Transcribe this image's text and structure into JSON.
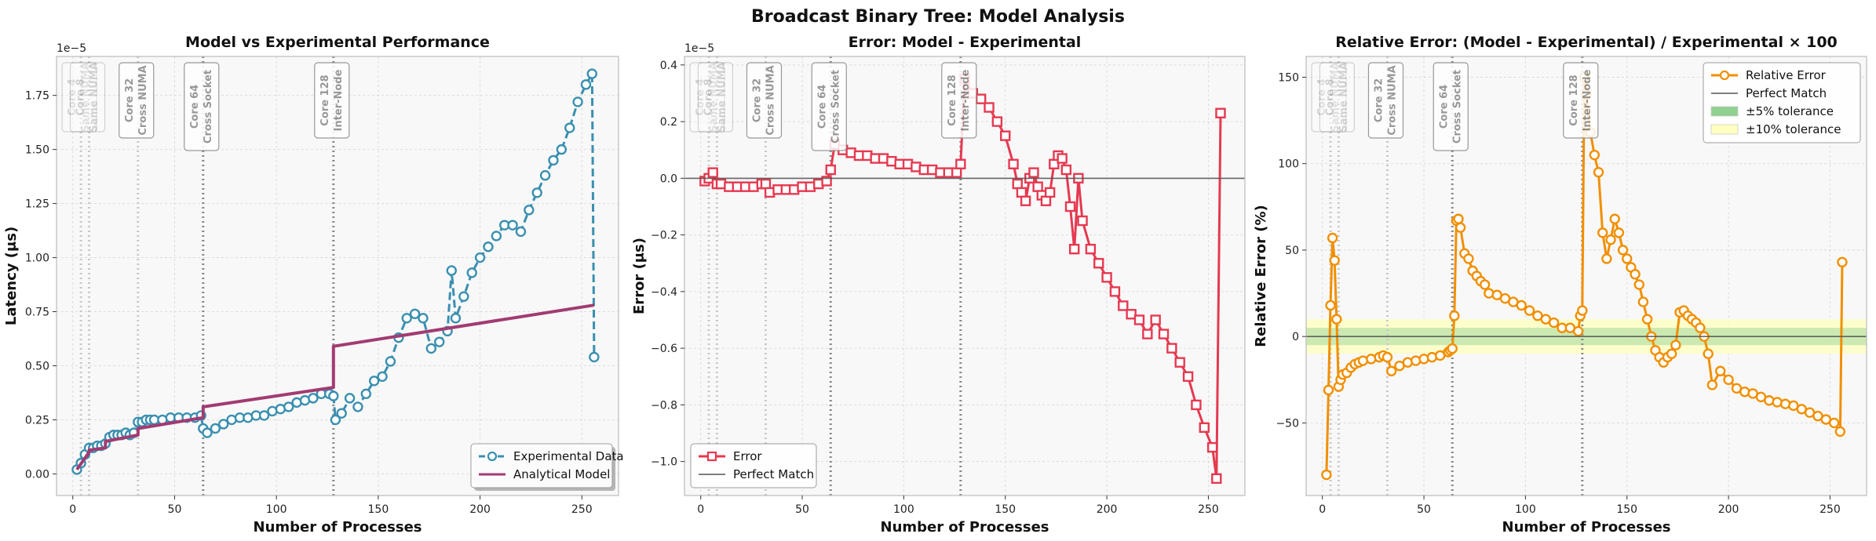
{
  "figure": {
    "title": "Broadcast Binary Tree: Model Analysis"
  },
  "colors": {
    "experimental": "#3a8fb0",
    "model": "#a23b72",
    "error": "#e63950",
    "relerr": "#f18f01",
    "reference": "#555555",
    "tol5": "#90d090",
    "tol10": "#ffffc0",
    "panel_bg": "#f8f8f8"
  },
  "boundaries": [
    {
      "x": 4,
      "line1": "Core 4",
      "line2": "Same NUMA"
    },
    {
      "x": 8,
      "line1": "Core 8",
      "line2": "Same NUMA"
    },
    {
      "x": 32,
      "line1": "Core 32",
      "line2": "Cross NUMA"
    },
    {
      "x": 64,
      "line1": "Core 64",
      "line2": "Cross Socket"
    },
    {
      "x": 128,
      "line1": "Core 128",
      "line2": "Inter-Node"
    }
  ],
  "chart_data": [
    {
      "type": "line",
      "title": "Model vs Experimental Performance",
      "xlabel": "Number of Processes",
      "ylabel": "Latency (μs)",
      "y_offset_label": "1e−5",
      "xlim": [
        -8,
        268
      ],
      "ylim": [
        -0.1,
        1.93
      ],
      "xticks": [
        0,
        50,
        100,
        150,
        200,
        250
      ],
      "yticks": [
        0.0,
        0.25,
        0.5,
        0.75,
        1.0,
        1.25,
        1.5,
        1.75
      ],
      "ytick_labels": [
        "0.00",
        "0.25",
        "0.50",
        "0.75",
        "1.00",
        "1.25",
        "1.50",
        "1.75"
      ],
      "legend": {
        "position": "bottom-right",
        "entries": [
          "Experimental Data",
          "Analytical Model"
        ]
      },
      "series": [
        {
          "name": "Experimental Data",
          "x": [
            2,
            4,
            6,
            8,
            10,
            12,
            14,
            16,
            18,
            20,
            22,
            24,
            26,
            28,
            30,
            32,
            34,
            36,
            38,
            40,
            44,
            48,
            52,
            56,
            60,
            63,
            64,
            66,
            70,
            74,
            78,
            82,
            86,
            90,
            94,
            98,
            102,
            106,
            110,
            114,
            118,
            122,
            126,
            128,
            129,
            132,
            136,
            140,
            144,
            148,
            152,
            156,
            160,
            164,
            168,
            172,
            176,
            180,
            184,
            186,
            188,
            192,
            196,
            200,
            204,
            208,
            212,
            216,
            220,
            224,
            228,
            232,
            236,
            240,
            244,
            248,
            252,
            255,
            256
          ],
          "values": [
            0.02,
            0.05,
            0.09,
            0.12,
            0.12,
            0.13,
            0.13,
            0.14,
            0.17,
            0.18,
            0.18,
            0.18,
            0.19,
            0.18,
            0.19,
            0.24,
            0.24,
            0.25,
            0.25,
            0.25,
            0.25,
            0.26,
            0.26,
            0.26,
            0.26,
            0.27,
            0.21,
            0.19,
            0.21,
            0.23,
            0.25,
            0.26,
            0.26,
            0.27,
            0.27,
            0.29,
            0.3,
            0.31,
            0.33,
            0.34,
            0.35,
            0.37,
            0.37,
            0.36,
            0.25,
            0.28,
            0.35,
            0.31,
            0.37,
            0.43,
            0.45,
            0.52,
            0.63,
            0.72,
            0.74,
            0.72,
            0.58,
            0.61,
            0.66,
            0.94,
            0.72,
            0.82,
            0.93,
            1.0,
            1.05,
            1.1,
            1.15,
            1.15,
            1.12,
            1.22,
            1.3,
            1.38,
            1.45,
            1.5,
            1.6,
            1.72,
            1.8,
            1.85,
            0.54
          ]
        },
        {
          "name": "Analytical Model",
          "x": [
            2,
            8,
            8,
            16,
            16,
            32,
            32,
            64,
            64,
            128,
            128,
            256
          ],
          "values": [
            0.02,
            0.1,
            0.11,
            0.12,
            0.15,
            0.18,
            0.21,
            0.26,
            0.31,
            0.4,
            0.59,
            0.78
          ]
        }
      ]
    },
    {
      "type": "line",
      "title": "Error: Model - Experimental",
      "xlabel": "Number of Processes",
      "ylabel": "Error (μs)",
      "y_offset_label": "1e−5",
      "xlim": [
        -8,
        268
      ],
      "ylim": [
        -1.12,
        0.43
      ],
      "xticks": [
        0,
        50,
        100,
        150,
        200,
        250
      ],
      "yticks": [
        -1.0,
        -0.8,
        -0.6,
        -0.4,
        -0.2,
        0.0,
        0.2,
        0.4
      ],
      "ytick_labels": [
        "−1.0",
        "−0.8",
        "−0.6",
        "−0.4",
        "−0.2",
        "0.0",
        "0.2",
        "0.4"
      ],
      "legend": {
        "position": "bottom-left",
        "entries": [
          "Error",
          "Perfect Match"
        ]
      },
      "series": [
        {
          "name": "Error",
          "x": [
            2,
            4,
            6,
            8,
            10,
            14,
            18,
            22,
            26,
            30,
            32,
            34,
            38,
            42,
            46,
            50,
            54,
            58,
            62,
            64,
            66,
            70,
            74,
            78,
            82,
            86,
            90,
            94,
            98,
            102,
            106,
            110,
            114,
            118,
            122,
            126,
            128,
            130,
            134,
            138,
            142,
            146,
            150,
            154,
            156,
            158,
            160,
            162,
            164,
            166,
            168,
            170,
            172,
            174,
            176,
            178,
            180,
            182,
            184,
            186,
            188,
            192,
            196,
            200,
            204,
            208,
            212,
            216,
            220,
            224,
            228,
            232,
            236,
            240,
            244,
            248,
            252,
            254,
            256
          ],
          "values": [
            -0.01,
            0.0,
            0.02,
            -0.02,
            -0.02,
            -0.03,
            -0.03,
            -0.03,
            -0.03,
            -0.02,
            -0.02,
            -0.05,
            -0.04,
            -0.04,
            -0.04,
            -0.03,
            -0.03,
            -0.02,
            -0.01,
            0.03,
            0.12,
            0.1,
            0.09,
            0.08,
            0.08,
            0.07,
            0.07,
            0.06,
            0.05,
            0.05,
            0.04,
            0.03,
            0.03,
            0.02,
            0.02,
            0.02,
            0.05,
            0.35,
            0.3,
            0.28,
            0.25,
            0.2,
            0.15,
            0.05,
            -0.02,
            -0.05,
            -0.08,
            0.0,
            0.02,
            -0.03,
            -0.06,
            -0.08,
            -0.05,
            0.05,
            0.08,
            0.07,
            0.03,
            -0.1,
            -0.25,
            0.0,
            -0.15,
            -0.25,
            -0.3,
            -0.35,
            -0.4,
            -0.45,
            -0.48,
            -0.5,
            -0.55,
            -0.5,
            -0.55,
            -0.6,
            -0.65,
            -0.7,
            -0.8,
            -0.88,
            -0.95,
            -1.06,
            0.23
          ]
        },
        {
          "name": "Perfect Match",
          "x": [
            -8,
            268
          ],
          "values": [
            0,
            0
          ]
        }
      ]
    },
    {
      "type": "line",
      "title": "Relative Error: (Model - Experimental) / Experimental × 100",
      "xlabel": "Number of Processes",
      "ylabel": "Relative Error (%)",
      "xlim": [
        -8,
        268
      ],
      "ylim": [
        -92,
        162
      ],
      "xticks": [
        0,
        50,
        100,
        150,
        200,
        250
      ],
      "yticks": [
        -50,
        0,
        50,
        100,
        150
      ],
      "ytick_labels": [
        "−50",
        "0",
        "50",
        "100",
        "150"
      ],
      "legend": {
        "position": "top-right",
        "entries": [
          "Relative Error",
          "Perfect Match",
          "±5% tolerance",
          "±10% tolerance"
        ]
      },
      "series": [
        {
          "name": "Relative Error",
          "x": [
            2,
            3,
            4,
            5,
            6,
            7,
            8,
            9,
            10,
            12,
            14,
            16,
            18,
            20,
            24,
            28,
            30,
            32,
            34,
            38,
            42,
            46,
            50,
            54,
            58,
            62,
            63,
            64,
            65,
            66,
            67,
            68,
            70,
            72,
            74,
            76,
            78,
            80,
            82,
            86,
            90,
            94,
            98,
            102,
            106,
            110,
            114,
            118,
            122,
            126,
            127,
            128,
            129,
            130,
            132,
            134,
            136,
            138,
            140,
            142,
            144,
            146,
            148,
            150,
            152,
            154,
            156,
            158,
            160,
            162,
            164,
            166,
            168,
            170,
            172,
            174,
            176,
            178,
            180,
            182,
            184,
            186,
            188,
            190,
            192,
            196,
            200,
            204,
            208,
            212,
            216,
            220,
            224,
            228,
            232,
            236,
            240,
            244,
            248,
            252,
            255,
            256
          ],
          "values": [
            -80,
            -31,
            18,
            57,
            44,
            10,
            -29,
            -25,
            -22,
            -21,
            -18,
            -16,
            -15,
            -14,
            -13,
            -12,
            -11,
            -12,
            -20,
            -17,
            -15,
            -14,
            -13,
            -12,
            -11,
            -9,
            -8,
            -7,
            12,
            67,
            68,
            63,
            48,
            45,
            38,
            35,
            32,
            30,
            25,
            24,
            22,
            20,
            18,
            15,
            12,
            10,
            8,
            5,
            5,
            3,
            12,
            15,
            150,
            140,
            118,
            105,
            95,
            60,
            45,
            56,
            68,
            60,
            50,
            45,
            40,
            36,
            30,
            20,
            10,
            0,
            -8,
            -12,
            -15,
            -12,
            -10,
            -5,
            14,
            15,
            12,
            10,
            8,
            5,
            0,
            -10,
            -28,
            -20,
            -25,
            -30,
            -32,
            -33,
            -35,
            -37,
            -38,
            -39,
            -40,
            -42,
            -44,
            -46,
            -48,
            -50,
            -55,
            43
          ]
        },
        {
          "name": "Perfect Match",
          "x": [
            -8,
            268
          ],
          "values": [
            0,
            0
          ]
        }
      ],
      "bands": [
        {
          "name": "±10% tolerance",
          "range": [
            -10,
            10
          ]
        },
        {
          "name": "±5% tolerance",
          "range": [
            -5,
            5
          ]
        }
      ]
    }
  ]
}
